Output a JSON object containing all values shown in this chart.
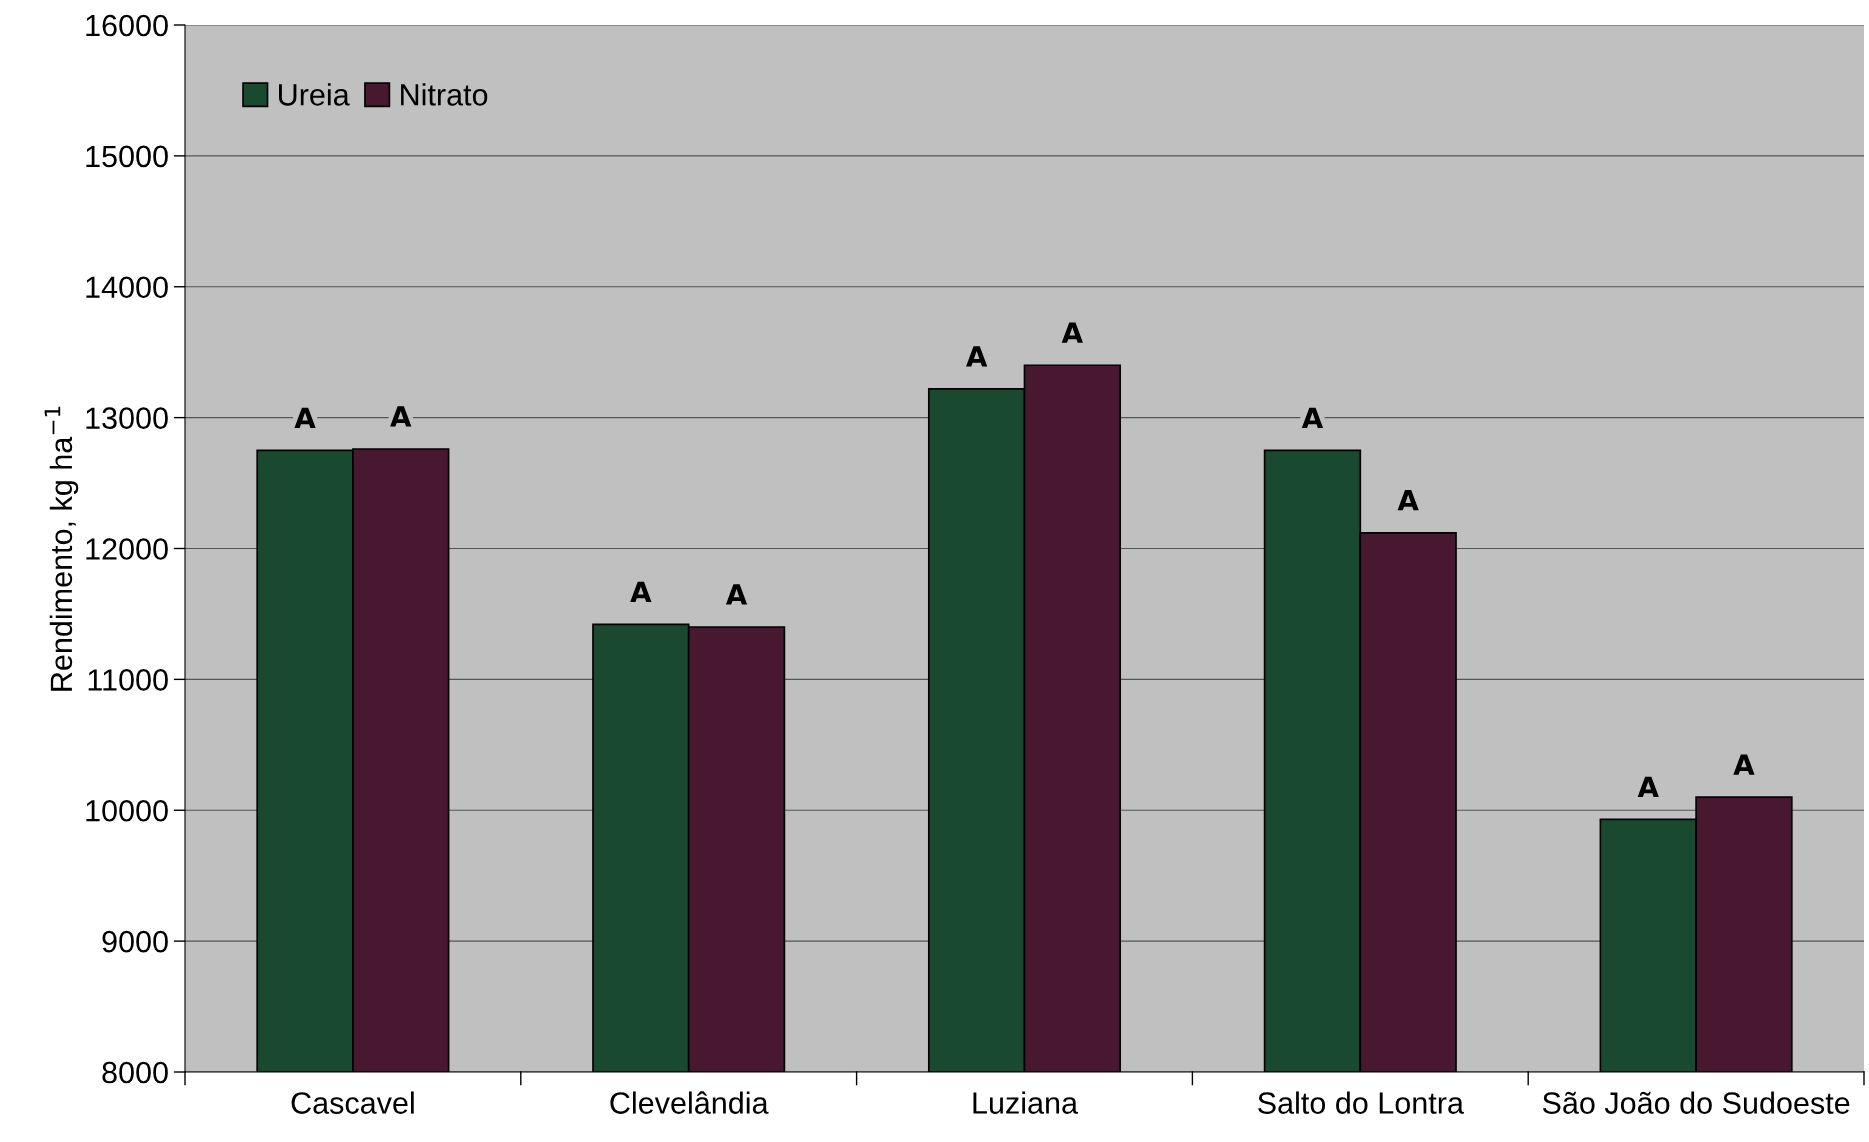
{
  "chart_data": {
    "type": "bar",
    "ylabel": "Rendimento, kg ha$^{−1}$",
    "categories": [
      "Cascavel",
      "Clevelândia",
      "Luziana",
      "Salto do Lontra",
      "São João do Sudoeste"
    ],
    "series": [
      {
        "name": "Ureia",
        "color": "#194a30",
        "values": [
          12750,
          11420,
          13220,
          12750,
          9930
        ],
        "value_labels": [
          "A",
          "A",
          "A",
          "A",
          "A"
        ]
      },
      {
        "name": "Nitrato",
        "color": "#481830",
        "values": [
          12760,
          11400,
          13400,
          12120,
          10100
        ],
        "value_labels": [
          "A",
          "A",
          "A",
          "A",
          "A"
        ]
      }
    ],
    "ylim": [
      8000,
      16000
    ],
    "yticks": [
      8000,
      9000,
      10000,
      11000,
      12000,
      13000,
      14000,
      15000,
      16000
    ],
    "grid": "y",
    "legend": "top left"
  }
}
